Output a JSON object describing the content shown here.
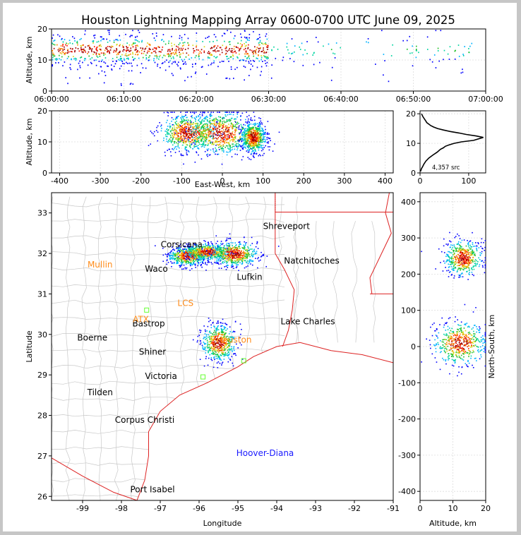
{
  "title": "Houston Lightning Mapping Array 0600-0700 UTC June 09, 2025",
  "colors": {
    "page_background": "#c6c6c6",
    "state_border": "#dd2222",
    "county_border": "#c8c8c8",
    "histogram_line": "#000000",
    "station_orange": "#ff8c1a",
    "station_blue": "#1a1aff",
    "station_green": "#66ff33",
    "source_density_scale": [
      "#0000ff",
      "#00b3ff",
      "#00d4a0",
      "#22c02a",
      "#d8d81a",
      "#ff8a00",
      "#ff1a00",
      "#a00000"
    ]
  },
  "chart_data": [
    {
      "type": "scatter",
      "panel": "altitude-time",
      "ylabel": "Altitude, km",
      "xlabel": "",
      "x_ticks": [
        "06:00:00",
        "06:10:00",
        "06:20:00",
        "06:30:00",
        "06:40:00",
        "06:50:00",
        "07:00:00"
      ],
      "y_ticks": [
        0,
        10,
        20
      ],
      "xlim": [
        "06:00:00",
        "07:00:00"
      ],
      "ylim": [
        0,
        20
      ],
      "grid": true,
      "point_density": [
        {
          "minute_start": 0,
          "minute_end": 14,
          "level": "dense"
        },
        {
          "minute_start": 14,
          "minute_end": 30,
          "level": "dense"
        },
        {
          "minute_start": 30,
          "minute_end": 40,
          "level": "sparse"
        },
        {
          "minute_start": 40,
          "minute_end": 49,
          "level": "very-sparse"
        },
        {
          "minute_start": 49,
          "minute_end": 59,
          "level": "sparse"
        }
      ],
      "altitude_band_km": [
        8,
        17
      ]
    },
    {
      "type": "scatter",
      "panel": "altitude-east-west",
      "xlabel": "East-West, km",
      "ylabel": "Altitude, km",
      "x_ticks": [
        -400,
        -300,
        -200,
        -100,
        0,
        100,
        200,
        300,
        400
      ],
      "y_ticks": [
        0,
        10,
        20
      ],
      "xlim": [
        -420,
        420
      ],
      "ylim": [
        0,
        20
      ],
      "grid": true,
      "clusters": [
        {
          "x_center_km": -85,
          "x_spread_km": 35,
          "alt_center_km": 13,
          "alt_spread_km": 3
        },
        {
          "x_center_km": -5,
          "x_spread_km": 40,
          "alt_center_km": 13,
          "alt_spread_km": 3.5
        },
        {
          "x_center_km": 75,
          "x_spread_km": 15,
          "alt_center_km": 11.5,
          "alt_spread_km": 2.5
        }
      ]
    },
    {
      "type": "line",
      "panel": "altitude-histogram",
      "xlabel": "",
      "ylabel": "",
      "x_ticks": [
        0,
        100
      ],
      "y_ticks": [
        0,
        10,
        20
      ],
      "xlim": [
        0,
        135
      ],
      "ylim": [
        0,
        21
      ],
      "annotation": "4,357 src",
      "x": [
        1,
        2,
        3,
        5,
        8,
        12,
        18,
        26,
        35,
        42,
        48,
        52,
        60,
        70,
        85,
        110,
        130,
        115,
        95,
        80,
        62,
        48,
        36,
        28,
        22,
        18,
        14,
        12,
        10,
        6,
        3
      ],
      "y": [
        0.5,
        1,
        1.5,
        2,
        3,
        4,
        5,
        6,
        7,
        8,
        8.5,
        9,
        9.5,
        10,
        10.5,
        11,
        12,
        12.5,
        13,
        13.5,
        14,
        14.5,
        15,
        15.5,
        16,
        16.5,
        17,
        17.5,
        18,
        19,
        20
      ]
    },
    {
      "type": "scatter",
      "panel": "plan-view-map",
      "xlabel": "Longitude",
      "ylabel": "Latitude",
      "x_ticks": [
        -99,
        -98,
        -97,
        -96,
        -95,
        -94,
        -93,
        -92,
        -91
      ],
      "y_ticks": [
        26,
        27,
        28,
        29,
        30,
        31,
        32,
        33
      ],
      "xlim": [
        -99.8,
        -91
      ],
      "ylim": [
        25.9,
        33.5
      ],
      "clusters": [
        {
          "lon_center": -96.3,
          "lon_spread": 0.25,
          "lat_center": 31.95,
          "lat_spread": 0.12
        },
        {
          "lon_center": -95.8,
          "lon_spread": 0.3,
          "lat_center": 32.05,
          "lat_spread": 0.1
        },
        {
          "lon_center": -95.1,
          "lon_spread": 0.3,
          "lat_center": 32.0,
          "lat_spread": 0.15
        },
        {
          "lon_center": -95.5,
          "lon_spread": 0.22,
          "lat_center": 29.8,
          "lat_spread": 0.22
        }
      ],
      "cities": [
        {
          "name": "Shreveport",
          "lon": -93.75,
          "lat": 32.6
        },
        {
          "name": "Natchitoches",
          "lon": -93.1,
          "lat": 31.75
        },
        {
          "name": "Waco",
          "lon": -97.1,
          "lat": 31.55
        },
        {
          "name": "Lufkin",
          "lon": -94.7,
          "lat": 31.35
        },
        {
          "name": "Corsicana",
          "lon": -96.45,
          "lat": 32.15
        },
        {
          "name": "Bastrop",
          "lon": -97.3,
          "lat": 30.2
        },
        {
          "name": "Lake Charles",
          "lon": -93.2,
          "lat": 30.25
        },
        {
          "name": "Boerne",
          "lon": -98.75,
          "lat": 29.85
        },
        {
          "name": "Shiner",
          "lon": -97.2,
          "lat": 29.5
        },
        {
          "name": "Victoria",
          "lon": -96.98,
          "lat": 28.9
        },
        {
          "name": "Tilden",
          "lon": -98.55,
          "lat": 28.5
        },
        {
          "name": "Corpus Christi",
          "lon": -97.4,
          "lat": 27.82
        },
        {
          "name": "Port Isabel",
          "lon": -97.2,
          "lat": 26.1
        }
      ],
      "stations": [
        {
          "name": "Mullin",
          "lon": -98.55,
          "lat": 31.65,
          "color": "station_orange"
        },
        {
          "name": "ATX",
          "lon": -97.5,
          "lat": 30.3,
          "color": "station_orange"
        },
        {
          "name": "LCS",
          "lon": -96.35,
          "lat": 30.7,
          "color": "station_orange"
        },
        {
          "name": "Houston",
          "lon": -95.1,
          "lat": 29.8,
          "color": "station_orange"
        },
        {
          "name": "Hoover-Diana",
          "lon": -94.3,
          "lat": 27.0,
          "color": "station_blue"
        }
      ],
      "station_markers": [
        {
          "lon": -97.35,
          "lat": 30.6
        },
        {
          "lon": -95.9,
          "lat": 28.95
        },
        {
          "lon": -94.85,
          "lat": 29.35
        }
      ]
    },
    {
      "type": "scatter",
      "panel": "north-south-altitude",
      "xlabel": "Altitude, km",
      "ylabel": "North-South, km",
      "x_ticks": [
        0,
        10,
        20
      ],
      "y_ticks": [
        -400,
        -300,
        -200,
        -100,
        0,
        100,
        200,
        300,
        400
      ],
      "xlim": [
        0,
        20
      ],
      "ylim": [
        -425,
        425
      ],
      "grid": true,
      "clusters": [
        {
          "alt_center_km": 13,
          "alt_spread_km": 2.8,
          "ns_center_km": 245,
          "ns_spread_km": 25
        },
        {
          "alt_center_km": 12,
          "alt_spread_km": 4,
          "ns_center_km": 10,
          "ns_spread_km": 30
        }
      ]
    }
  ]
}
